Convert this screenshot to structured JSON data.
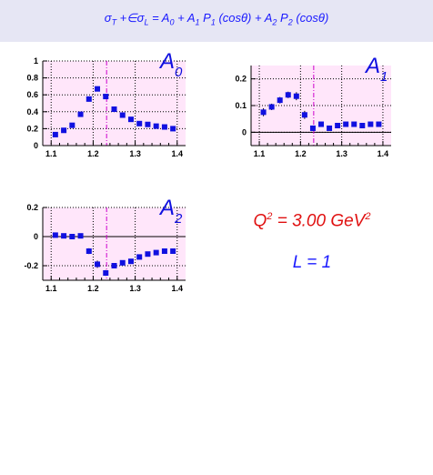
{
  "header": {
    "formula_pre": "σ",
    "formula_sub_T": "T",
    "formula_mid": " +∈σ",
    "formula_sub_L": "L",
    "formula_eq": " = A",
    "formula_sub_0": "0",
    "formula_plus1": " + A",
    "formula_sub_1": "1",
    "formula_p1": " P",
    "formula_sub_p1": "1",
    "formula_cos1": " (cosθ) + A",
    "formula_sub_2": "2",
    "formula_p2": " P",
    "formula_sub_p2": "2",
    "formula_cos2": " (cosθ)"
  },
  "info": {
    "q2_text": "Q",
    "q2_sup": "2",
    "q2_value": " = 3.00 GeV",
    "q2_unit_sup": "2",
    "l_text": "L = 1"
  },
  "colors": {
    "marker": "#1010e0",
    "plot_bg": "#ffe6fa",
    "dashed_line": "#cc00cc",
    "grid": "#000000",
    "q2_color": "#e01010",
    "l_color": "#1a1aff",
    "header_bg": "#e6e6f4"
  },
  "chart_data": [
    {
      "type": "scatter",
      "name_label": "A",
      "name_sub": "0",
      "xlim": [
        1.08,
        1.42
      ],
      "ylim": [
        0,
        1.0
      ],
      "xticks": [
        "1.1",
        "1.2",
        "1.3",
        "1.4"
      ],
      "xtick_values": [
        1.1,
        1.2,
        1.3,
        1.4
      ],
      "yticks": [
        "0",
        "0.2",
        "0.4",
        "0.6",
        "0.8",
        "1"
      ],
      "ytick_values": [
        0,
        0.2,
        0.4,
        0.6,
        0.8,
        1.0
      ],
      "vline_x": 1.232,
      "zero_line": false,
      "x": [
        1.11,
        1.13,
        1.15,
        1.17,
        1.19,
        1.21,
        1.23,
        1.25,
        1.27,
        1.29,
        1.31,
        1.33,
        1.35,
        1.37,
        1.39
      ],
      "y": [
        0.13,
        0.18,
        0.24,
        0.37,
        0.55,
        0.67,
        0.58,
        0.43,
        0.36,
        0.31,
        0.26,
        0.25,
        0.23,
        0.22,
        0.2
      ],
      "err": [
        0.02,
        0.02,
        0.02,
        0.02,
        0.03,
        0.03,
        0.03,
        0.02,
        0.02,
        0.02,
        0.02,
        0.02,
        0.02,
        0.02,
        0.02
      ]
    },
    {
      "type": "scatter",
      "name_label": "A",
      "name_sub": "1",
      "xlim": [
        1.08,
        1.42
      ],
      "ylim": [
        -0.05,
        0.25
      ],
      "xticks": [
        "1.1",
        "1.2",
        "1.3",
        "1.4"
      ],
      "xtick_values": [
        1.1,
        1.2,
        1.3,
        1.4
      ],
      "yticks": [
        "0",
        "0.1",
        "0.2"
      ],
      "ytick_values": [
        0,
        0.1,
        0.2
      ],
      "vline_x": 1.232,
      "zero_line": true,
      "x": [
        1.11,
        1.13,
        1.15,
        1.17,
        1.19,
        1.21,
        1.23,
        1.25,
        1.27,
        1.29,
        1.31,
        1.33,
        1.35,
        1.37,
        1.39
      ],
      "y": [
        0.075,
        0.095,
        0.12,
        0.14,
        0.135,
        0.065,
        0.015,
        0.03,
        0.015,
        0.025,
        0.03,
        0.03,
        0.025,
        0.03,
        0.03
      ],
      "err": [
        0.015,
        0.012,
        0.012,
        0.012,
        0.015,
        0.015,
        0.01,
        0.01,
        0.008,
        0.008,
        0.008,
        0.008,
        0.008,
        0.008,
        0.008
      ]
    },
    {
      "type": "scatter",
      "name_label": "A",
      "name_sub": "2",
      "xlim": [
        1.08,
        1.42
      ],
      "ylim": [
        -0.3,
        0.2
      ],
      "xticks": [
        "1.1",
        "1.2",
        "1.3",
        "1.4"
      ],
      "xtick_values": [
        1.1,
        1.2,
        1.3,
        1.4
      ],
      "yticks": [
        "-0.2",
        "0",
        "0.2"
      ],
      "ytick_values": [
        -0.2,
        0,
        0.2
      ],
      "vline_x": 1.232,
      "zero_line": true,
      "x": [
        1.11,
        1.13,
        1.15,
        1.17,
        1.19,
        1.21,
        1.23,
        1.25,
        1.27,
        1.29,
        1.31,
        1.33,
        1.35,
        1.37,
        1.39
      ],
      "y": [
        0.01,
        0.005,
        0.0,
        0.005,
        -0.1,
        -0.19,
        -0.25,
        -0.2,
        -0.18,
        -0.17,
        -0.14,
        -0.12,
        -0.11,
        -0.1,
        -0.1
      ],
      "err": [
        0.015,
        0.015,
        0.015,
        0.015,
        0.02,
        0.025,
        0.02,
        0.015,
        0.015,
        0.015,
        0.015,
        0.015,
        0.015,
        0.015,
        0.015
      ]
    }
  ]
}
